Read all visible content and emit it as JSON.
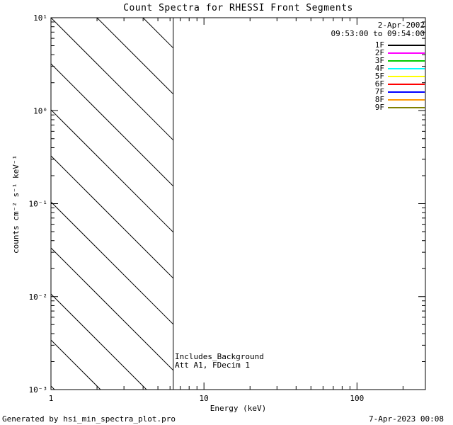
{
  "chart_data": {
    "type": "line",
    "title": "Count Spectra for RHESSI Front Segments",
    "xlabel": "Energy (keV)",
    "ylabel": "counts cm⁻² s⁻¹ keV⁻¹",
    "x_scale": "log",
    "y_scale": "log",
    "xlim": [
      1,
      280
    ],
    "ylim": [
      0.001,
      10
    ],
    "grid": false,
    "x_ticks": [
      {
        "value": 1,
        "label": "1"
      },
      {
        "value": 10,
        "label": "10"
      },
      {
        "value": 100,
        "label": "100"
      }
    ],
    "y_ticks": [
      {
        "value": 10,
        "label": "10¹"
      },
      {
        "value": 1,
        "label": "10⁰"
      },
      {
        "value": 0.1,
        "label": "10⁻¹"
      },
      {
        "value": 0.01,
        "label": "10⁻²"
      },
      {
        "value": 0.001,
        "label": "10⁻³"
      }
    ],
    "hatched_region": {
      "x_start": 1,
      "x_end": 6.3,
      "style": "diagonal-hatch"
    },
    "series": [
      {
        "name": "1F",
        "color": "#000000",
        "values": []
      },
      {
        "name": "2F",
        "color": "#ff00ff",
        "values": []
      },
      {
        "name": "3F",
        "color": "#00cc00",
        "values": []
      },
      {
        "name": "4F",
        "color": "#00ffff",
        "values": []
      },
      {
        "name": "5F",
        "color": "#ffff00",
        "values": []
      },
      {
        "name": "6F",
        "color": "#ff0000",
        "values": []
      },
      {
        "name": "7F",
        "color": "#0000ff",
        "values": []
      },
      {
        "name": "8F",
        "color": "#ff9900",
        "values": []
      },
      {
        "name": "9F",
        "color": "#808000",
        "values": []
      }
    ],
    "legend": {
      "position": "top-right",
      "date": "2-Apr-2002",
      "time_range": "09:53:00 to 09:54:00"
    },
    "annotations": [
      "Includes_Background",
      "Att A1, FDecim 1"
    ]
  },
  "footer": {
    "generated_by": "Generated by hsi_min_spectra_plot.pro",
    "timestamp": "7-Apr-2023 00:08"
  }
}
